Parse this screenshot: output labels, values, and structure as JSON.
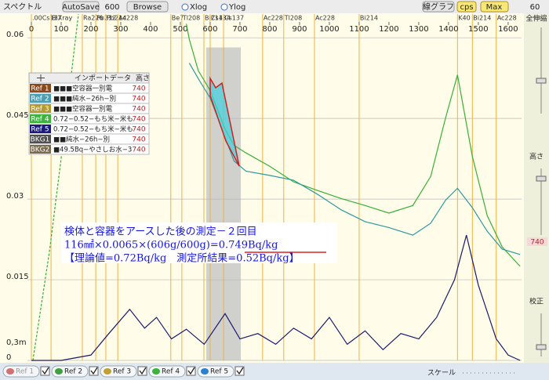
{
  "toolbar": {
    "title": "スペクトル",
    "autosave": "AutoSave",
    "count": "600",
    "browse": "Browse",
    "xlog": "Xlog",
    "ylog": "Ylog",
    "graph": "線グラフ",
    "cps": "cps",
    "max": "Max",
    "num": "60"
  },
  "chart_data": {
    "type": "line",
    "xlim": [
      0,
      1645
    ],
    "ylim": [
      0,
      0.0644
    ],
    "xticks": [
      0,
      100,
      200,
      300,
      400,
      500,
      600,
      700,
      800,
      900,
      1000,
      1100,
      1200,
      1300,
      1400,
      1500,
      1600
    ],
    "yticks": [
      0,
      0.015,
      0.03,
      0.045,
      0.06
    ],
    "grid": true,
    "lower_label": "0,3m",
    "roi": {
      "x": [
        587,
        703
      ],
      "top": 0.0582
    },
    "series": [
      {
        "color": "#2fae2f",
        "dashed": true,
        "x": [
          5,
          60,
          110,
          158
        ],
        "values": [
          0,
          0.02,
          0.042,
          0.0644
        ]
      },
      {
        "color": "#36b036",
        "x": [
          520,
          530,
          560,
          600,
          650,
          680,
          720,
          800,
          880,
          960,
          1040,
          1120,
          1200,
          1280,
          1340,
          1390,
          1430,
          1480,
          1530,
          1580,
          1640
        ],
        "values": [
          0.0626,
          0.0597,
          0.0539,
          0.0502,
          0.043,
          0.04,
          0.0386,
          0.0361,
          0.0332,
          0.0316,
          0.0301,
          0.0288,
          0.0274,
          0.0288,
          0.0342,
          0.0451,
          0.0531,
          0.0379,
          0.0269,
          0.0211,
          0.0175
        ]
      },
      {
        "color": "#2a9a9e",
        "x": [
          530,
          560,
          600,
          650,
          680,
          720,
          800,
          880,
          960,
          1040,
          1120,
          1200,
          1280,
          1340,
          1390,
          1430,
          1480,
          1530,
          1580,
          1640
        ],
        "values": [
          0.0553,
          0.0524,
          0.0488,
          0.0415,
          0.0371,
          0.0352,
          0.0344,
          0.0335,
          0.0309,
          0.028,
          0.0258,
          0.0247,
          0.0233,
          0.0255,
          0.0298,
          0.032,
          0.0284,
          0.024,
          0.0207,
          0.0197
        ]
      },
      {
        "color": "#1a1a70",
        "x": [
          0,
          100,
          200,
          260,
          330,
          380,
          420,
          470,
          520,
          580,
          650,
          700,
          760,
          820,
          880,
          940,
          1000,
          1060,
          1120,
          1180,
          1240,
          1300,
          1360,
          1420,
          1460,
          1500,
          1560,
          1600,
          1640
        ],
        "values": [
          0,
          0,
          0.001,
          0.005,
          0.0095,
          0.006,
          0.008,
          0.004,
          0.0058,
          0.003,
          0.0087,
          0.004,
          0.005,
          0.003,
          0.006,
          0.004,
          0.008,
          0.003,
          0.0055,
          0.002,
          0.005,
          0.004,
          0.008,
          0.015,
          0.0233,
          0.014,
          0.004,
          0.001,
          0
        ]
      }
    ],
    "nuclides": [
      {
        "label": ".00Cs137",
        "x": 0
      },
      {
        "label": "BiXray",
        "x": 66
      },
      {
        "label": "Ra226",
        "x": 171
      },
      {
        "label": "Pb212",
        "x": 216
      },
      {
        "label": "Pb214",
        "x": 250
      },
      {
        "label": "Ac228",
        "x": 290
      },
      {
        "label": "Be7",
        "x": 468
      },
      {
        "label": "Tl208",
        "x": 505
      },
      {
        "label": "Bi214",
        "x": 579
      },
      {
        "label": "Cs134",
        "x": 600
      },
      {
        "label": "Cs137",
        "x": 645
      },
      {
        "label": "Ac228",
        "x": 776
      },
      {
        "label": "Tl208",
        "x": 847
      },
      {
        "label": "Ac228",
        "x": 950
      },
      {
        "label": "Bi214",
        "x": 1100
      },
      {
        "label": "K40",
        "x": 1430
      },
      {
        "label": "Bi214",
        "x": 1480
      },
      {
        "label": "Ac228",
        "x": 1560
      }
    ],
    "annotations": [
      "検体と容器をアースした後の測定－２回目",
      "116㎟×0.0065×(606g/600g)=0.749Bq/kg",
      "【理論値=0.72Bq/kg　測定所結果=0.52Bq/kg】"
    ]
  },
  "legend": {
    "header": [
      "インポートデータ",
      "高さ"
    ],
    "colors": [
      "#8b4a1c",
      "#4a9fb5",
      "#b59a30",
      "#3cb43c",
      "#1a1a80",
      "#505050",
      "#7a6a50"
    ],
    "rows": [
      [
        "Ref 1",
        "■■■空容器一別電",
        "740"
      ],
      [
        "Ref 2",
        "■■■純水−26h−別",
        "740"
      ],
      [
        "Ref 3",
        "■■■空容器一別電",
        "740"
      ],
      [
        "Ref 4",
        "0.72−0.52−もち米−米も",
        "740"
      ],
      [
        "Ref 5",
        "0.72−0.52−もち米−米も",
        "740"
      ],
      [
        "BKG1",
        "■■純水−26h−別",
        "740"
      ],
      [
        "BKG2",
        "■49.5Bq−やさしお水−3",
        "740"
      ]
    ]
  },
  "side": {
    "zoom": "全伸縮",
    "height": "高さ",
    "height_value": "740",
    "calib": "校正"
  },
  "bottom": {
    "tabs": [
      "Ref 1",
      "Ref 2",
      "Ref 3",
      "Ref 4",
      "Ref 5"
    ],
    "tab_colors": [
      "#d07070",
      "#40a040",
      "#c0a030",
      "#3cb43c",
      "#2a7fd0"
    ],
    "scale": "スケール"
  }
}
